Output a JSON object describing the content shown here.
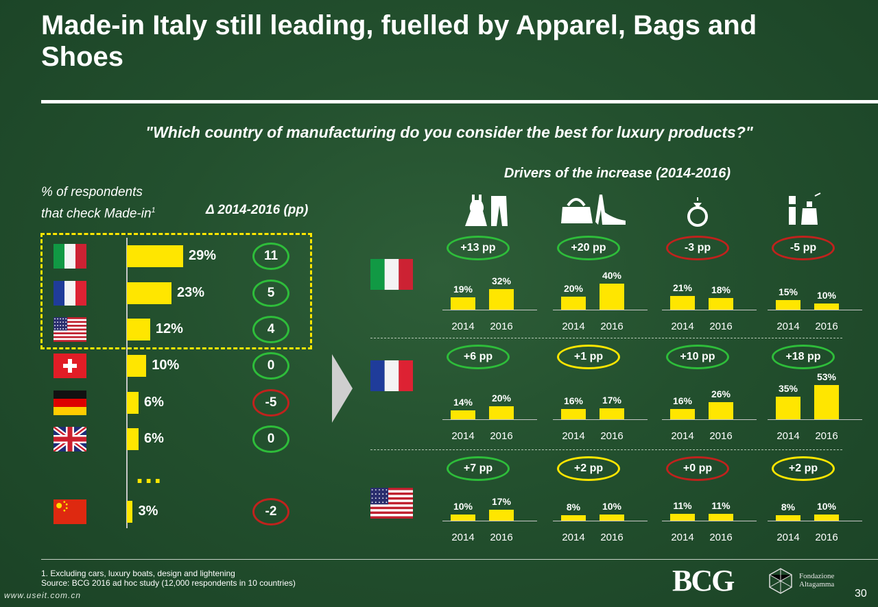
{
  "title": "Made-in Italy still leading,  fuelled by Apparel, Bags and Shoes",
  "question": "\"Which country of manufacturing do you consider the best for luxury products?\"",
  "left_label_1": "% of respondents",
  "left_label_2": "that check Made-in",
  "left_label_sup": "1",
  "delta_header": "Δ 2014-2016 (pp)",
  "drivers_title": "Drivers of the increase (2014-2016)",
  "ellipsis": "...",
  "colors": {
    "bar": "#ffe600",
    "positive": "#2ebd3a",
    "negative": "#c0221d",
    "neutral": "#ffe600"
  },
  "chart_data": [
    {
      "type": "bar",
      "orientation": "horizontal",
      "categories": [
        "Italy",
        "France",
        "USA",
        "Switzerland",
        "Germany",
        "UK",
        "China"
      ],
      "values": [
        29,
        23,
        12,
        10,
        6,
        6,
        3
      ],
      "labels": [
        "29%",
        "23%",
        "12%",
        "10%",
        "6%",
        "6%",
        "3%"
      ],
      "delta_pp": [
        11,
        5,
        4,
        0,
        -5,
        0,
        -2
      ],
      "delta_labels": [
        "11",
        "5",
        "4",
        "0",
        "-5",
        "0",
        "-2"
      ],
      "delta_colors": [
        "green",
        "green",
        "green",
        "green",
        "red",
        "green",
        "red"
      ],
      "highlighted": [
        "Italy",
        "France",
        "USA"
      ]
    },
    {
      "type": "bar",
      "title": "Drivers of the increase (2014-2016)",
      "categories": [
        "2014",
        "2016"
      ],
      "panels": [
        {
          "country": "Italy",
          "groups": [
            {
              "icon": "apparel-icon",
              "pp": "+13 pp",
              "status": "green",
              "values": [
                19,
                32
              ],
              "labels": [
                "19%",
                "32%"
              ]
            },
            {
              "icon": "bags-shoes-icon",
              "pp": "+20 pp",
              "status": "green",
              "values": [
                20,
                40
              ],
              "labels": [
                "20%",
                "40%"
              ]
            },
            {
              "icon": "ring-icon",
              "pp": "-3 pp",
              "status": "red",
              "values": [
                21,
                18
              ],
              "labels": [
                "21%",
                "18%"
              ]
            },
            {
              "icon": "cosmetics-icon",
              "pp": "-5 pp",
              "status": "red",
              "values": [
                15,
                10
              ],
              "labels": [
                "15%",
                "10%"
              ]
            }
          ]
        },
        {
          "country": "France",
          "groups": [
            {
              "icon": "apparel-icon",
              "pp": "+6 pp",
              "status": "green",
              "values": [
                14,
                20
              ],
              "labels": [
                "14%",
                "20%"
              ]
            },
            {
              "icon": "bags-shoes-icon",
              "pp": "+1 pp",
              "status": "yellow",
              "values": [
                16,
                17
              ],
              "labels": [
                "16%",
                "17%"
              ]
            },
            {
              "icon": "ring-icon",
              "pp": "+10 pp",
              "status": "green",
              "values": [
                16,
                26
              ],
              "labels": [
                "16%",
                "26%"
              ]
            },
            {
              "icon": "cosmetics-icon",
              "pp": "+18 pp",
              "status": "green",
              "values": [
                35,
                53
              ],
              "labels": [
                "35%",
                "53%"
              ]
            }
          ]
        },
        {
          "country": "USA",
          "groups": [
            {
              "icon": "apparel-icon",
              "pp": "+7 pp",
              "status": "green",
              "values": [
                10,
                17
              ],
              "labels": [
                "10%",
                "17%"
              ]
            },
            {
              "icon": "bags-shoes-icon",
              "pp": "+2 pp",
              "status": "yellow",
              "values": [
                8,
                10
              ],
              "labels": [
                "8%",
                "10%"
              ]
            },
            {
              "icon": "ring-icon",
              "pp": "+0 pp",
              "status": "red",
              "values": [
                11,
                11
              ],
              "labels": [
                "11%",
                "11%"
              ]
            },
            {
              "icon": "cosmetics-icon",
              "pp": "+2 pp",
              "status": "yellow",
              "values": [
                8,
                10
              ],
              "labels": [
                "8%",
                "10%"
              ]
            }
          ]
        }
      ]
    }
  ],
  "footnote_1": "1. Excluding cars, luxury boats, design and lightening",
  "footnote_2": "Source: BCG 2016 ad hoc study (12,000 respondents in 10 countries)",
  "logo_bcg": "BCG",
  "logo_fondazione_1": "Fondazione",
  "logo_fondazione_2": "Altagamma",
  "page_number": "30",
  "watermark": "www.useit.com.cn"
}
